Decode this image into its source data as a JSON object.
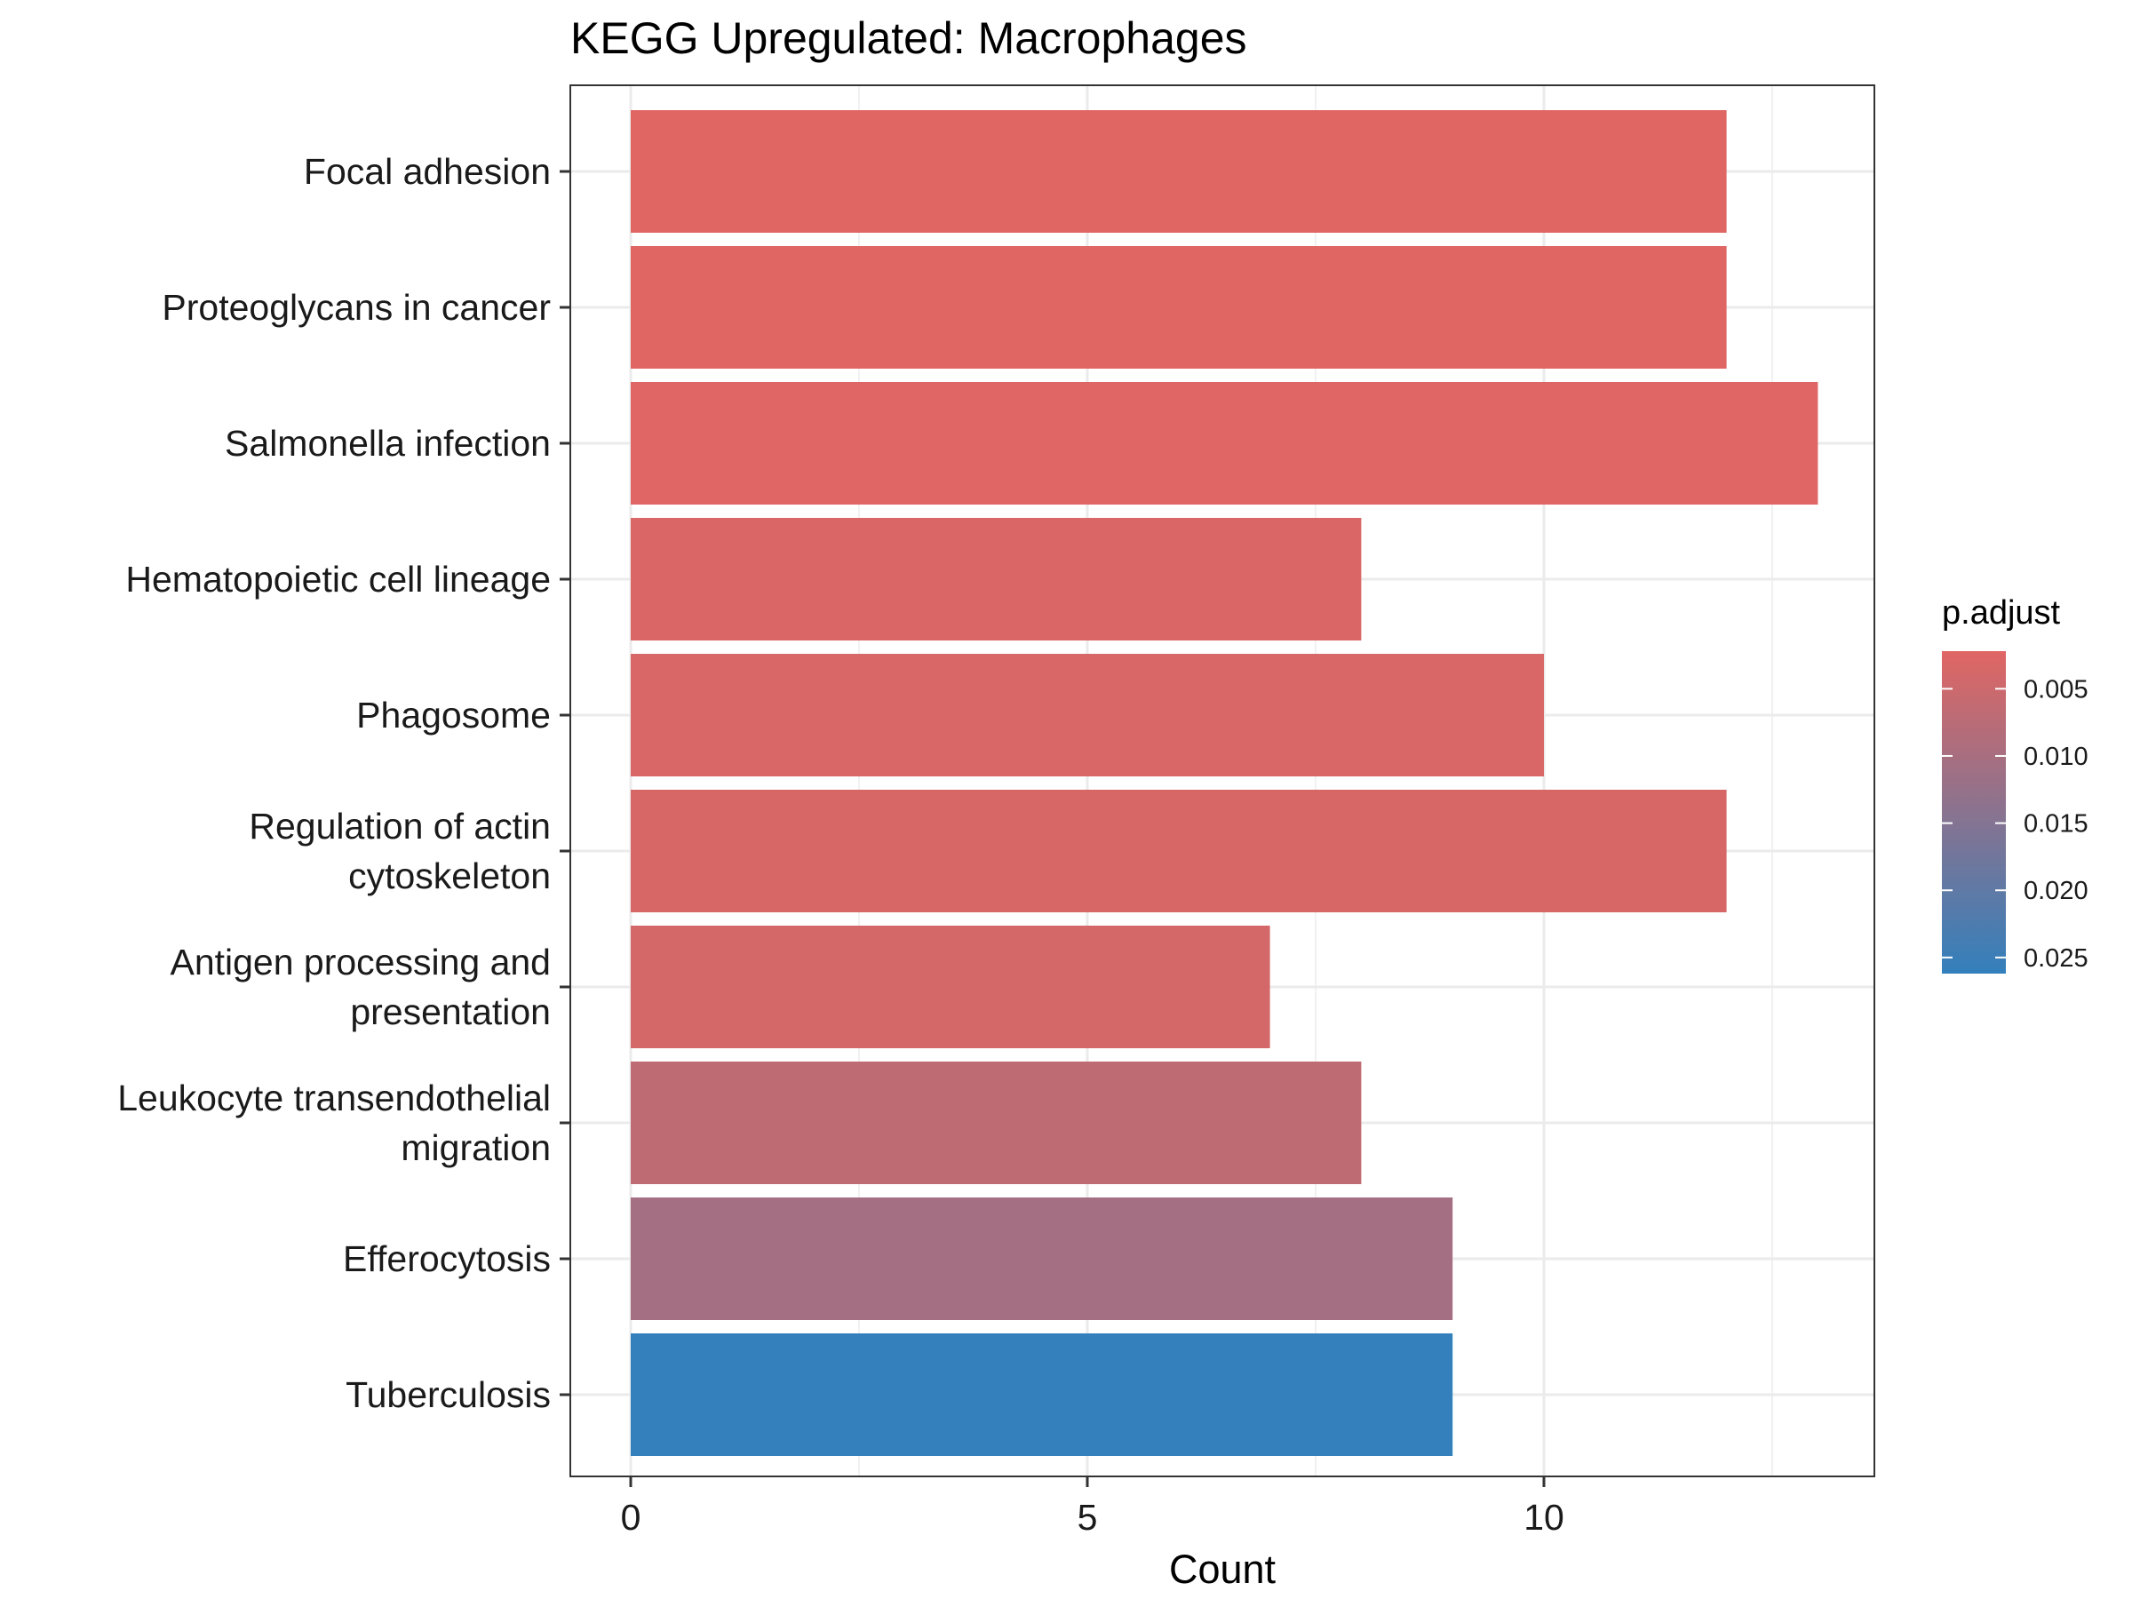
{
  "chart_data": {
    "type": "bar",
    "orientation": "horizontal",
    "title": "KEGG Upregulated: Macrophages",
    "xlabel": "Count",
    "ylabel": "",
    "xlim": [
      0,
      13.6
    ],
    "x_ticks": [
      0,
      5,
      10
    ],
    "grid": true,
    "categories": [
      [
        "Focal adhesion"
      ],
      [
        "Proteoglycans in cancer"
      ],
      [
        "Salmonella infection"
      ],
      [
        "Hematopoietic cell lineage"
      ],
      [
        "Phagosome"
      ],
      [
        "Regulation of actin",
        "cytoskeleton"
      ],
      [
        "Antigen processing and",
        "presentation"
      ],
      [
        "Leukocyte transendothelial",
        "migration"
      ],
      [
        "Efferocytosis"
      ],
      [
        "Tuberculosis"
      ]
    ],
    "values": [
      12,
      12,
      13,
      8,
      10,
      12,
      7,
      8,
      9,
      9
    ],
    "p_adjust": [
      0.0022,
      0.0022,
      0.0024,
      0.003,
      0.0032,
      0.0034,
      0.0038,
      0.0068,
      0.0105,
      0.0262
    ],
    "legend": {
      "title": "p.adjust",
      "position": "right",
      "ticks": [
        "0.005",
        "0.010",
        "0.015",
        "0.020",
        "0.025"
      ],
      "tick_values": [
        0.005,
        0.01,
        0.015,
        0.02,
        0.025
      ],
      "range": [
        0.0022,
        0.0262
      ],
      "low_color": "#E06663",
      "high_color": "#3380BC"
    }
  }
}
